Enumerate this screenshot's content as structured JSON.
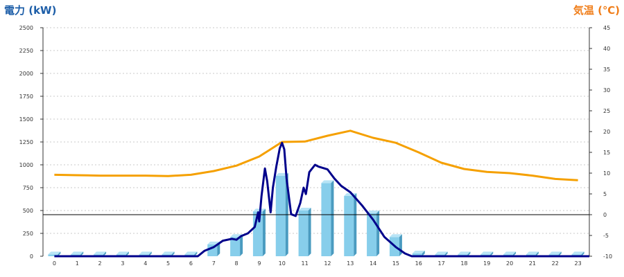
{
  "chart_data": {
    "type": "bar",
    "left_axis_title": "電力 (kW)",
    "right_axis_title": "気温 (℃)",
    "categories": [
      "0",
      "1",
      "2",
      "3",
      "4",
      "5",
      "6",
      "7",
      "8",
      "9",
      "10",
      "11",
      "12",
      "13",
      "14",
      "15",
      "16",
      "17",
      "18",
      "19",
      "20",
      "21",
      "22",
      "23"
    ],
    "y_left": {
      "min": 0,
      "max": 2500,
      "ticks": [
        0,
        250,
        500,
        750,
        1000,
        1250,
        1500,
        1750,
        2000,
        2250,
        2500
      ]
    },
    "y_right": {
      "min": -10,
      "max": 45,
      "ticks": [
        -10,
        -5,
        0,
        5,
        10,
        15,
        20,
        25,
        30,
        35,
        40,
        45
      ]
    },
    "grid": true,
    "bars": {
      "color": "#87ceeb",
      "values": [
        20,
        20,
        20,
        20,
        20,
        20,
        20,
        130,
        210,
        490,
        880,
        500,
        800,
        660,
        470,
        210,
        30,
        20,
        20,
        20,
        20,
        20,
        20,
        20
      ]
    },
    "power_line": {
      "color": "#00008b",
      "points": [
        [
          0,
          0
        ],
        [
          6.3,
          0
        ],
        [
          6.6,
          60
        ],
        [
          7,
          100
        ],
        [
          7.4,
          170
        ],
        [
          7.8,
          190
        ],
        [
          8,
          180
        ],
        [
          8.2,
          220
        ],
        [
          8.5,
          250
        ],
        [
          8.8,
          320
        ],
        [
          8.95,
          480
        ],
        [
          9,
          380
        ],
        [
          9.1,
          660
        ],
        [
          9.25,
          960
        ],
        [
          9.35,
          820
        ],
        [
          9.5,
          480
        ],
        [
          9.6,
          750
        ],
        [
          9.75,
          980
        ],
        [
          9.9,
          1180
        ],
        [
          10,
          1240
        ],
        [
          10.1,
          1170
        ],
        [
          10.2,
          850
        ],
        [
          10.4,
          460
        ],
        [
          10.6,
          440
        ],
        [
          10.8,
          580
        ],
        [
          10.95,
          750
        ],
        [
          11.05,
          680
        ],
        [
          11.2,
          920
        ],
        [
          11.45,
          1000
        ],
        [
          11.6,
          980
        ],
        [
          12,
          950
        ],
        [
          12.3,
          850
        ],
        [
          12.6,
          770
        ],
        [
          13,
          700
        ],
        [
          13.5,
          560
        ],
        [
          14,
          400
        ],
        [
          14.5,
          210
        ],
        [
          15,
          100
        ],
        [
          15.4,
          30
        ],
        [
          15.7,
          0
        ],
        [
          23.5,
          0
        ]
      ]
    },
    "temperature_line": {
      "color": "#f5a000",
      "points": [
        [
          0,
          9.6
        ],
        [
          1,
          9.5
        ],
        [
          2,
          9.4
        ],
        [
          3,
          9.4
        ],
        [
          4,
          9.4
        ],
        [
          5,
          9.3
        ],
        [
          6,
          9.6
        ],
        [
          7,
          10.5
        ],
        [
          8,
          11.8
        ],
        [
          9,
          14
        ],
        [
          10,
          17.5
        ],
        [
          11,
          17.6
        ],
        [
          12,
          19
        ],
        [
          13,
          20.2
        ],
        [
          14,
          18.5
        ],
        [
          15,
          17.3
        ],
        [
          16,
          15
        ],
        [
          17,
          12.5
        ],
        [
          18,
          11
        ],
        [
          19,
          10.3
        ],
        [
          20,
          10
        ],
        [
          21,
          9.4
        ],
        [
          22,
          8.6
        ],
        [
          23,
          8.3
        ]
      ]
    },
    "reference_line": {
      "y_right": 0,
      "color": "#000000"
    }
  }
}
